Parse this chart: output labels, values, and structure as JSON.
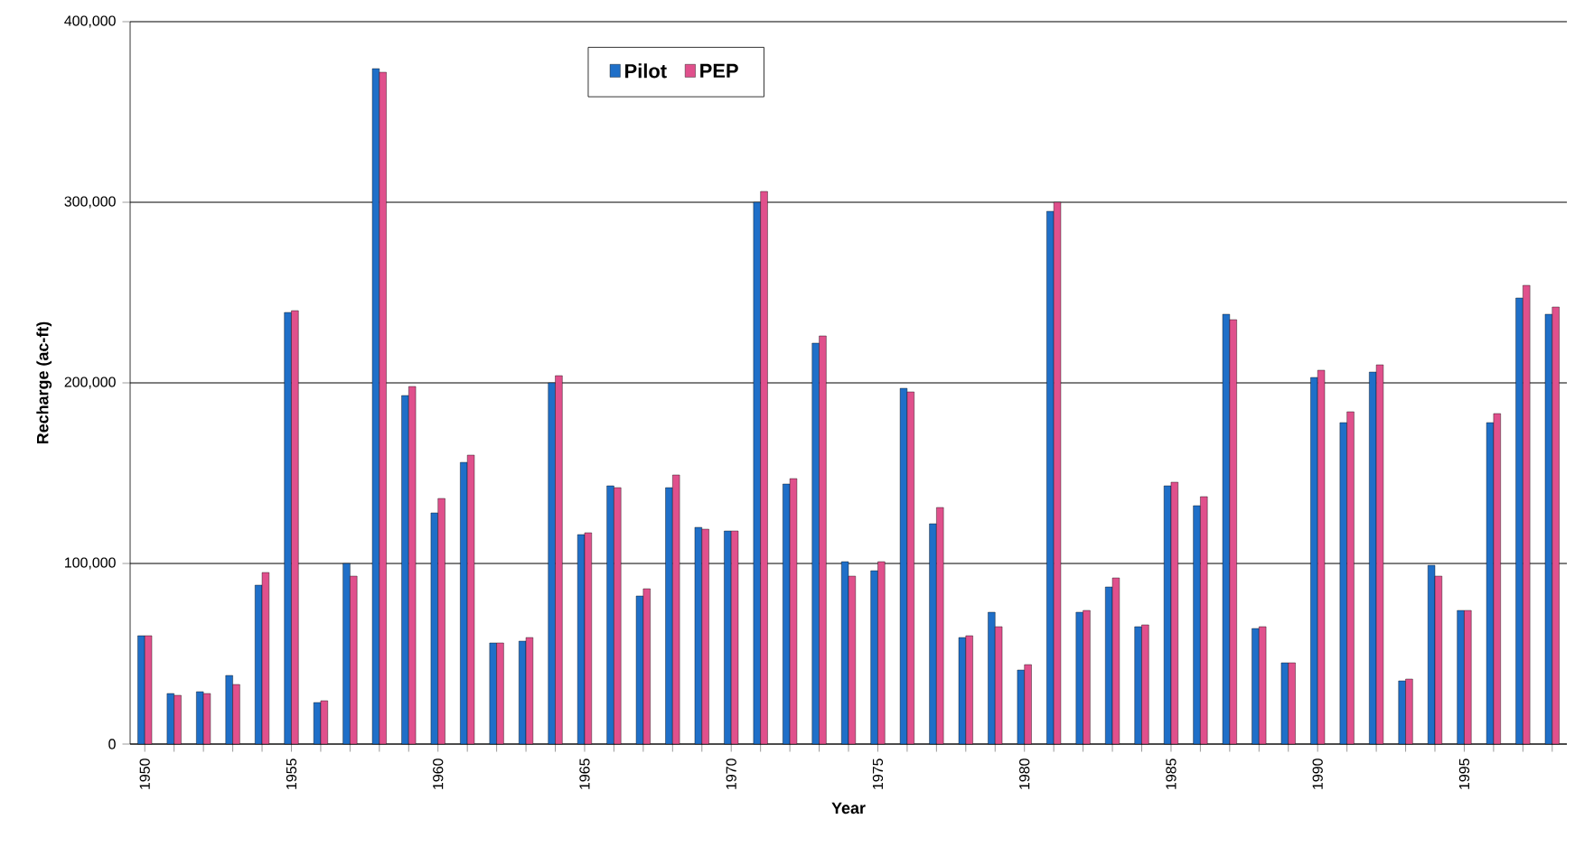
{
  "chart_data": {
    "type": "bar",
    "xlabel": "Year",
    "ylabel": "Recharge (ac-ft)",
    "categories": [
      "1950",
      null,
      null,
      null,
      null,
      "1955",
      null,
      null,
      null,
      null,
      "1960",
      null,
      null,
      null,
      null,
      "1965",
      null,
      null,
      null,
      null,
      "1970",
      null,
      null,
      null,
      null,
      "1975",
      null,
      null,
      null,
      null,
      "1980",
      null,
      null,
      null,
      null,
      "1985",
      null,
      null,
      null,
      null,
      "1990",
      null,
      null,
      null,
      null,
      "1995",
      null,
      null,
      null
    ],
    "series": [
      {
        "name": "Pilot",
        "color": "#1f6fc8",
        "values": [
          60000,
          28000,
          29000,
          38000,
          88000,
          239000,
          23000,
          100000,
          374000,
          193000,
          128000,
          156000,
          56000,
          57000,
          200000,
          116000,
          143000,
          82000,
          142000,
          120000,
          118000,
          300000,
          144000,
          222000,
          101000,
          96000,
          197000,
          122000,
          59000,
          73000,
          41000,
          295000,
          73000,
          87000,
          65000,
          143000,
          132000,
          238000,
          64000,
          45000,
          203000,
          178000,
          206000,
          35000,
          99000,
          74000,
          178000,
          247000,
          238000
        ]
      },
      {
        "name": "PEP",
        "color": "#e0508c",
        "values": [
          60000,
          27000,
          28000,
          33000,
          95000,
          240000,
          24000,
          93000,
          372000,
          198000,
          136000,
          160000,
          56000,
          59000,
          204000,
          117000,
          142000,
          86000,
          149000,
          119000,
          118000,
          306000,
          147000,
          226000,
          93000,
          101000,
          195000,
          131000,
          60000,
          65000,
          44000,
          300000,
          74000,
          92000,
          66000,
          145000,
          137000,
          235000,
          65000,
          45000,
          207000,
          184000,
          210000,
          36000,
          93000,
          74000,
          183000,
          254000,
          242000
        ]
      }
    ],
    "ylim": [
      0,
      400000
    ],
    "yticks": [
      0,
      {
        "value": 100000,
        "label": "100,000"
      },
      {
        "value": 200000,
        "label": "200,000"
      },
      {
        "value": 300000,
        "label": "300,000"
      },
      {
        "value": 400000,
        "label": "400,000"
      }
    ],
    "grid": "y",
    "legend": "top"
  }
}
